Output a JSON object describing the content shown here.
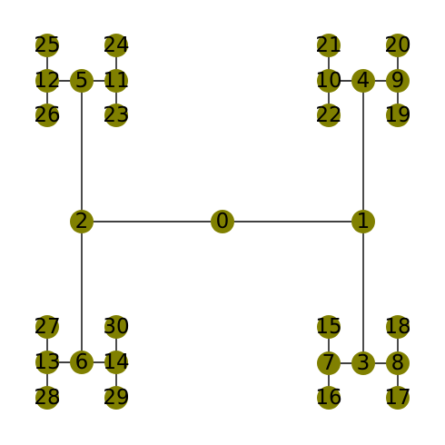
{
  "diagram": {
    "type": "tree-graph",
    "node_color": "#808000",
    "edge_color": "#000000",
    "label_color": "#000000",
    "nodes": [
      "0",
      "1",
      "2",
      "3",
      "4",
      "5",
      "6",
      "7",
      "8",
      "9",
      "10",
      "11",
      "12",
      "13",
      "14",
      "15",
      "16",
      "17",
      "18",
      "19",
      "20",
      "21",
      "22",
      "23",
      "24",
      "25",
      "26",
      "27",
      "28",
      "29",
      "30"
    ],
    "edges": [
      [
        "0",
        "1"
      ],
      [
        "0",
        "2"
      ],
      [
        "1",
        "3"
      ],
      [
        "1",
        "4"
      ],
      [
        "2",
        "5"
      ],
      [
        "2",
        "6"
      ],
      [
        "3",
        "7"
      ],
      [
        "3",
        "8"
      ],
      [
        "4",
        "9"
      ],
      [
        "4",
        "10"
      ],
      [
        "5",
        "11"
      ],
      [
        "5",
        "12"
      ],
      [
        "6",
        "13"
      ],
      [
        "6",
        "14"
      ],
      [
        "7",
        "15"
      ],
      [
        "7",
        "16"
      ],
      [
        "8",
        "17"
      ],
      [
        "8",
        "18"
      ],
      [
        "9",
        "19"
      ],
      [
        "9",
        "20"
      ],
      [
        "10",
        "21"
      ],
      [
        "10",
        "22"
      ],
      [
        "11",
        "23"
      ],
      [
        "11",
        "24"
      ],
      [
        "12",
        "25"
      ],
      [
        "12",
        "26"
      ],
      [
        "13",
        "27"
      ],
      [
        "13",
        "28"
      ],
      [
        "14",
        "29"
      ],
      [
        "14",
        "30"
      ]
    ]
  }
}
